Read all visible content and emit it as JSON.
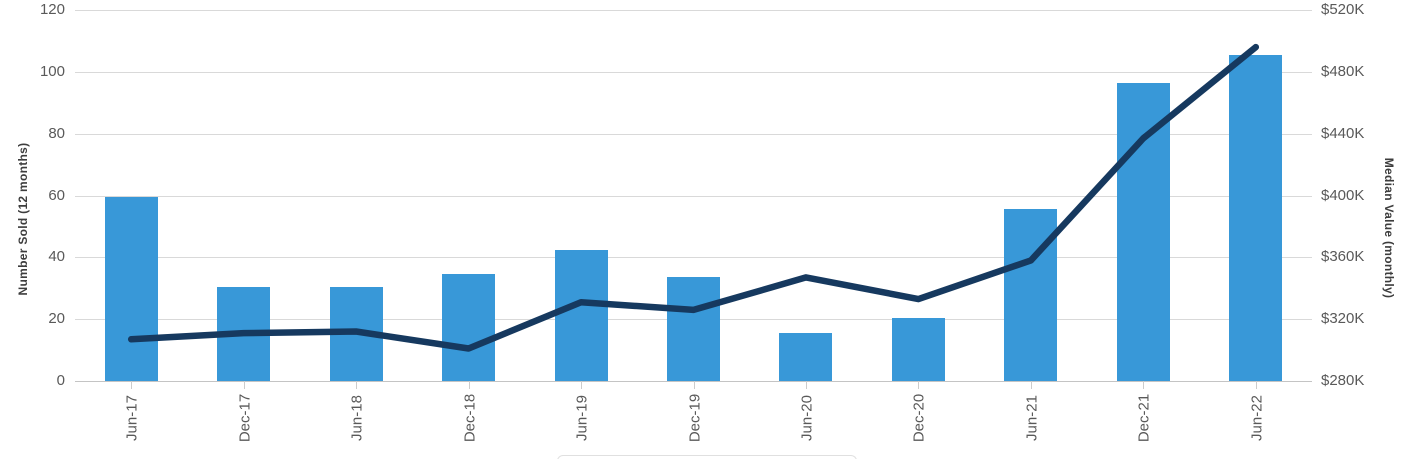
{
  "chart_data": {
    "type": "combo-bar-line",
    "title": "",
    "categories": [
      "Jun-17",
      "Dec-17",
      "Jun-18",
      "Dec-18",
      "Jun-19",
      "Dec-19",
      "Jun-20",
      "Dec-20",
      "Jun-21",
      "Dec-21",
      "Jun-22"
    ],
    "series": [
      {
        "name": "Number Sold (12 months)",
        "type": "bar",
        "axis": "left",
        "color": "#3898d8",
        "values": [
          59.5,
          30.5,
          30.5,
          34.5,
          42.5,
          33.5,
          15.5,
          20.5,
          55.5,
          96.5,
          105.5
        ]
      },
      {
        "name": "Median Value (monthly)",
        "type": "line",
        "axis": "right",
        "color": "#16395f",
        "values_usd": [
          307000,
          311000,
          312000,
          301000,
          331000,
          326000,
          347000,
          333000,
          358000,
          437000,
          496000
        ]
      }
    ],
    "left_axis": {
      "title": "Number Sold (12 months)",
      "min": 0,
      "max": 120,
      "tick_step": 20,
      "tick_labels": [
        "0",
        "20",
        "40",
        "60",
        "80",
        "100",
        "120"
      ]
    },
    "right_axis": {
      "title": "Median Value (monthly)",
      "min": 280000,
      "max": 520000,
      "tick_step": 40000,
      "tick_labels": [
        "$280K",
        "$320K",
        "$360K",
        "$400K",
        "$440K",
        "$480K",
        "$520K"
      ]
    },
    "grid": true,
    "legend_position": "bottom (cropped out of view)"
  },
  "colors": {
    "bar_fill": "#3898d8",
    "line_stroke": "#16395f",
    "gridline": "#d9d9d9",
    "axis_line": "#c4c4c4",
    "tick_text": "#595959",
    "axis_title_text": "#3d3d3d",
    "background": "#ffffff"
  }
}
